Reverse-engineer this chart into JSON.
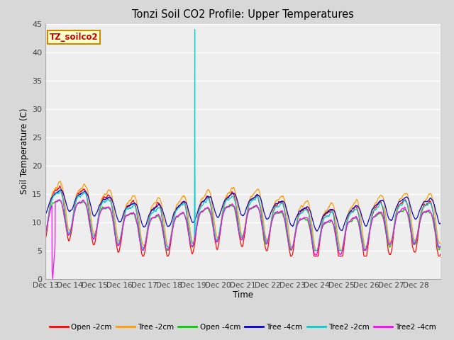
{
  "title": "Tonzi Soil CO2 Profile: Upper Temperatures",
  "ylabel": "Soil Temperature (C)",
  "xlabel": "Time",
  "watermark": "TZ_soilco2",
  "ylim": [
    0,
    45
  ],
  "xlim": [
    0,
    16
  ],
  "xtick_labels": [
    "Dec 13",
    "Dec 14",
    "Dec 15",
    "Dec 16",
    "Dec 17",
    "Dec 18",
    "Dec 19",
    "Dec 20",
    "Dec 21",
    "Dec 22",
    "Dec 23",
    "Dec 24",
    "Dec 25",
    "Dec 26",
    "Dec 27",
    "Dec 28"
  ],
  "ytick_values": [
    0,
    5,
    10,
    15,
    20,
    25,
    30,
    35,
    40,
    45
  ],
  "fig_bg_color": "#d8d8d8",
  "plot_bg_color": "#eeeeee",
  "grid_color": "#ffffff",
  "series": [
    {
      "name": "Open -2cm",
      "color": "#ff0000"
    },
    {
      "name": "Tree -2cm",
      "color": "#ff9900"
    },
    {
      "name": "Open -4cm",
      "color": "#00cc00"
    },
    {
      "name": "Tree -4cm",
      "color": "#0000cc"
    },
    {
      "name": "Tree2 -2cm",
      "color": "#00cccc"
    },
    {
      "name": "Tree2 -4cm",
      "color": "#ff00ff"
    }
  ]
}
